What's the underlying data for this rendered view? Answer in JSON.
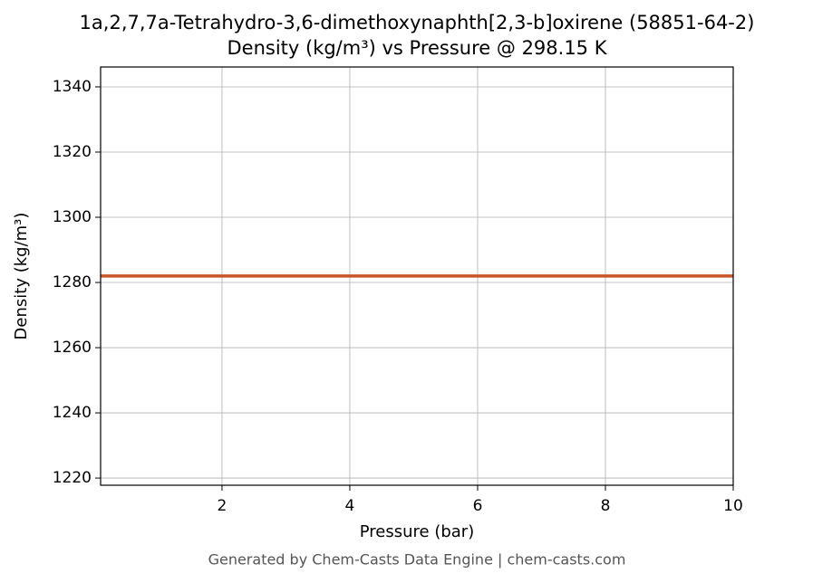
{
  "chart_data": {
    "type": "line",
    "title": "1a,2,7,7a-Tetrahydro-3,6-dimethoxynaphth[2,3-b]oxirene (58851-64-2)",
    "subtitle": "Density (kg/m³) vs Pressure @ 298.15 K",
    "x_label": "Pressure (bar)",
    "y_label": "Density (kg/m³)",
    "footer": "Generated by Chem-Casts Data Engine | chem-casts.com",
    "x": [
      0.1,
      10
    ],
    "series": [
      {
        "name": "Density",
        "color": "#c8552a",
        "values": [
          1282,
          1282
        ]
      }
    ],
    "xlim": [
      0.1,
      10
    ],
    "xticks": [
      2,
      4,
      6,
      8,
      10
    ],
    "ylim": [
      1217.8,
      1346.1
    ],
    "yticks": [
      1220,
      1240,
      1260,
      1280,
      1300,
      1320,
      1340
    ],
    "grid": true
  }
}
